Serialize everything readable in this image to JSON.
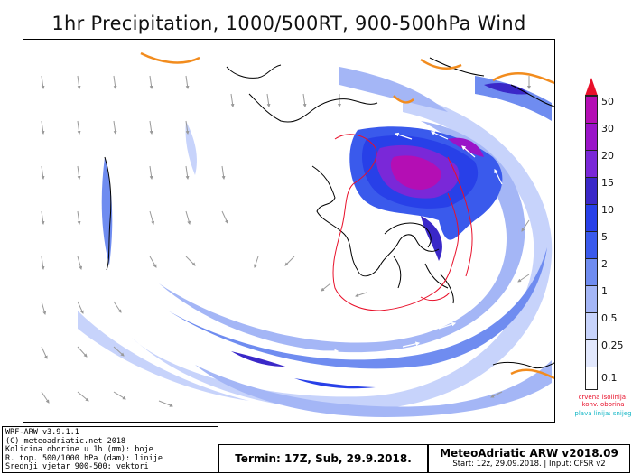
{
  "title": "1hr Precipitation, 1000/500RT, 900-500hPa Wind",
  "colorbar": {
    "levels": [
      "50",
      "30",
      "20",
      "15",
      "10",
      "5",
      "2",
      "1",
      "0.5",
      "0.25",
      "0.1"
    ],
    "colors": [
      "#b40eb4",
      "#9a14c8",
      "#7a28d8",
      "#3a28c8",
      "#2840e8",
      "#3a5aec",
      "#6f8cf0",
      "#a4b6f6",
      "#c7d3fb",
      "#e2e8fd",
      "#ffffff"
    ],
    "overflow_color": "#e8102a"
  },
  "legend_notes": {
    "red_label": "crvena isolinija: konv. oborina",
    "red_color": "#e8102a",
    "cyan_label": "plava linija: snijeg",
    "cyan_color": "#15b7c6"
  },
  "footer": {
    "left_lines": [
      "WRF-ARW v3.9.1.1",
      "(C) meteoadriatic.net 2018",
      "Kolicina oborine u 1h (mm): boje",
      "R. top. 500/1000 hPa (dam): linije",
      "Srednji vjetar 900-500: vektori"
    ],
    "termin": "Termin: 17Z, Sub, 29.9.2018.",
    "brand": "MeteoAdriatic ARW v2018.09",
    "start": "Start: 12z, 29.09.2018. | Input: CFSR v2"
  }
}
